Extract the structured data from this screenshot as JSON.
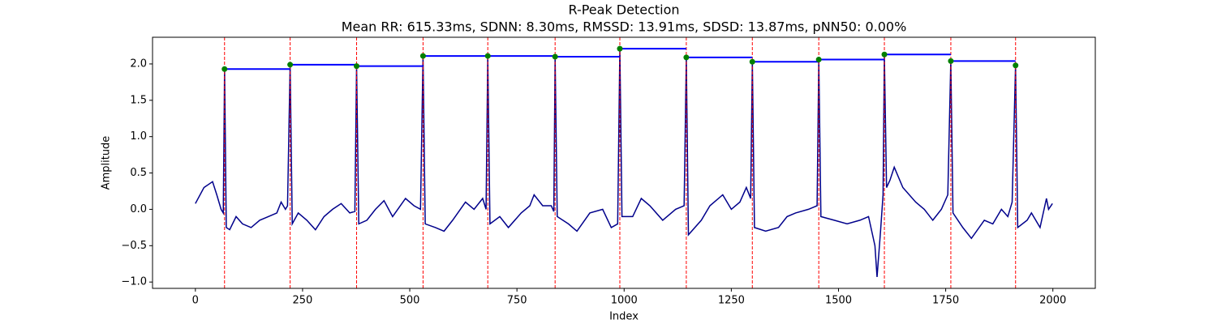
{
  "chart_data": {
    "type": "line",
    "title": "R-Peak Detection",
    "subtitle": "Mean RR: 615.33ms, SDNN: 8.30ms, RMSSD: 13.91ms, SDSD: 13.87ms, pNN50: 0.00%",
    "xlabel": "Index",
    "ylabel": "Amplitude",
    "xlim": [
      -99.95,
      2098.95
    ],
    "ylim": [
      -1.087,
      2.367
    ],
    "xticks": [
      0,
      250,
      500,
      750,
      1000,
      1250,
      1500,
      1750,
      2000
    ],
    "yticks": [
      {
        "value": -1,
        "label": "−1.0"
      },
      {
        "value": -0.5,
        "label": "−0.5"
      },
      {
        "value": 0,
        "label": "0.0"
      },
      {
        "value": 0.5,
        "label": "0.5"
      },
      {
        "value": 1,
        "label": "1.0"
      },
      {
        "value": 1.5,
        "label": "1.5"
      },
      {
        "value": 2,
        "label": "2.0"
      }
    ],
    "series": [
      {
        "color": "#00008b",
        "x": [
          0,
          20,
          40,
          50,
          60,
          65,
          68,
          72,
          80,
          95,
          110,
          130,
          150,
          170,
          190,
          200,
          210,
          215,
          221,
          226,
          240,
          260,
          280,
          300,
          320,
          340,
          360,
          372,
          376,
          381,
          400,
          420,
          440,
          460,
          490,
          510,
          525,
          531,
          536,
          560,
          580,
          600,
          630,
          650,
          670,
          678,
          682,
          687,
          710,
          730,
          760,
          780,
          790,
          810,
          830,
          836,
          839,
          844,
          870,
          890,
          920,
          950,
          970,
          985,
          990,
          995,
          1020,
          1040,
          1060,
          1090,
          1120,
          1140,
          1145,
          1150,
          1180,
          1200,
          1230,
          1250,
          1270,
          1285,
          1295,
          1299,
          1304,
          1330,
          1360,
          1380,
          1400,
          1430,
          1450,
          1454,
          1459,
          1490,
          1520,
          1550,
          1570,
          1585,
          1590,
          1598,
          1604,
          1607,
          1612,
          1620,
          1630,
          1650,
          1680,
          1700,
          1720,
          1740,
          1755,
          1762,
          1767,
          1790,
          1810,
          1840,
          1860,
          1880,
          1895,
          1905,
          1913,
          1918,
          1940,
          1950,
          1970,
          1985,
          1990,
          1999
        ],
        "values": [
          0.08,
          0.3,
          0.38,
          0.2,
          0,
          -0.05,
          1.93,
          -0.25,
          -0.28,
          -0.1,
          -0.2,
          -0.25,
          -0.15,
          -0.1,
          -0.05,
          0.1,
          0,
          0.05,
          1.99,
          -0.2,
          -0.05,
          -0.15,
          -0.28,
          -0.1,
          0,
          0.08,
          -0.05,
          -0.03,
          1.97,
          -0.2,
          -0.15,
          0,
          0.12,
          -0.1,
          0.15,
          0.05,
          0,
          2.11,
          -0.2,
          -0.25,
          -0.3,
          -0.15,
          0.1,
          0,
          0.15,
          0,
          2.11,
          -0.2,
          -0.1,
          -0.25,
          -0.05,
          0.05,
          0.2,
          0.05,
          0.05,
          -0.03,
          2.1,
          -0.1,
          -0.2,
          -0.3,
          -0.05,
          0,
          -0.25,
          -0.2,
          2.21,
          -0.1,
          -0.1,
          0.15,
          0.05,
          -0.15,
          0,
          0.05,
          2.09,
          -0.35,
          -0.15,
          0.05,
          0.2,
          0,
          0.1,
          0.3,
          0.15,
          2.03,
          -0.25,
          -0.3,
          -0.25,
          -0.1,
          -0.05,
          0,
          0.05,
          2.06,
          -0.1,
          -0.15,
          -0.2,
          -0.15,
          -0.1,
          -0.5,
          -0.93,
          -0.3,
          0.2,
          2.13,
          0.3,
          0.4,
          0.58,
          0.3,
          0.1,
          0,
          -0.15,
          0,
          0.2,
          2.04,
          -0.05,
          -0.25,
          -0.4,
          -0.15,
          -0.2,
          0,
          -0.1,
          0.1,
          1.98,
          -0.25,
          -0.15,
          -0.05,
          -0.25,
          0.15,
          0,
          0.08
        ]
      },
      {
        "color": "#008000",
        "rr_color": "#0000ff",
        "line_color": "#ff0000",
        "x": [
          68,
          221,
          376,
          531,
          682,
          839,
          990,
          1145,
          1299,
          1454,
          1607,
          1762,
          1913
        ],
        "values": [
          1.93,
          1.99,
          1.97,
          2.11,
          2.11,
          2.1,
          2.21,
          2.09,
          2.03,
          2.06,
          2.13,
          2.04,
          1.98
        ]
      }
    ]
  }
}
